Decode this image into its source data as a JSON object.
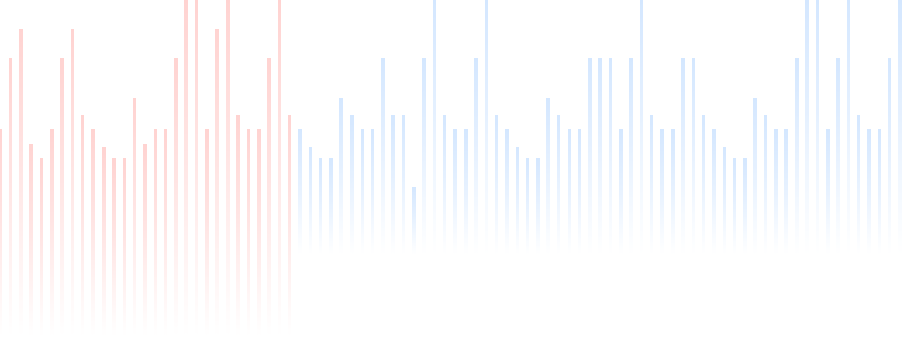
{
  "background": {
    "colors": {
      "warm": "#FFD3D1",
      "cool": "#D4E7FF",
      "page": "#FFFFFF"
    }
  }
}
